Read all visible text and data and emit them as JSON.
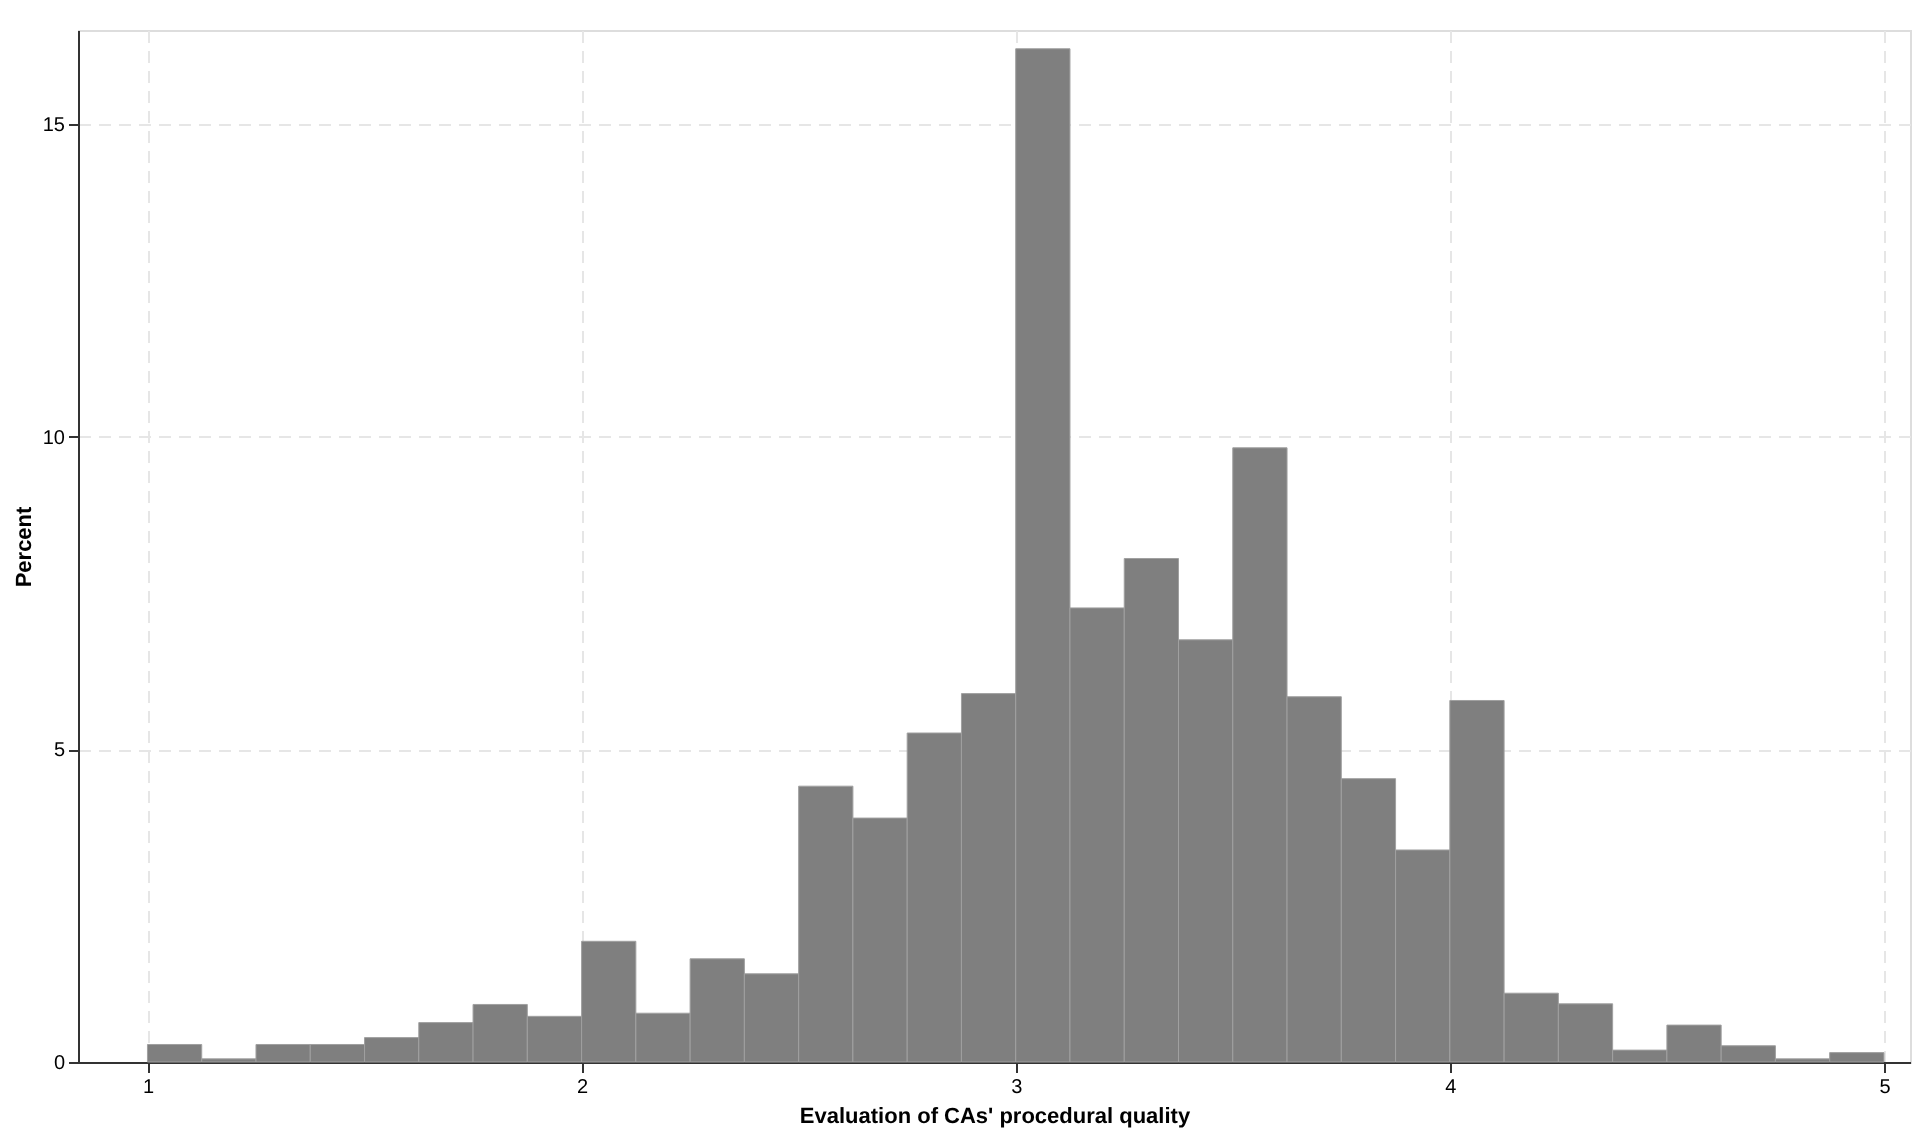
{
  "chart_data": {
    "type": "histogram",
    "xlabel": "Evaluation of CAs' procedural quality",
    "ylabel": "Percent",
    "bins": [
      1,
      1.125,
      1.25,
      1.375,
      1.5,
      1.625,
      1.75,
      1.875,
      2,
      2.125,
      2.25,
      2.375,
      2.5,
      2.625,
      2.75,
      2.875,
      3,
      3.125,
      3.25,
      3.375,
      3.5,
      3.625,
      3.75,
      3.875,
      4,
      4.125,
      4.25,
      4.375,
      4.5,
      4.625,
      4.75,
      4.875,
      5
    ],
    "values": [
      0.28,
      0.05,
      0.28,
      0.28,
      0.39,
      0.63,
      0.92,
      0.73,
      1.93,
      0.78,
      1.65,
      1.41,
      4.41,
      3.9,
      5.26,
      5.89,
      16.2,
      7.26,
      8.05,
      6.75,
      9.82,
      5.84,
      4.53,
      3.39,
      5.78,
      1.1,
      0.93,
      0.19,
      0.59,
      0.26,
      0.05,
      0.15
    ],
    "color": "#7f7f7f",
    "xlim": [
      0.84,
      5.06
    ],
    "ylim": [
      0,
      16.5
    ],
    "xticks": [
      1,
      2,
      3,
      4,
      5
    ],
    "yticks": [
      0,
      5,
      10,
      15
    ],
    "grid": true,
    "line_style": "dashed"
  }
}
